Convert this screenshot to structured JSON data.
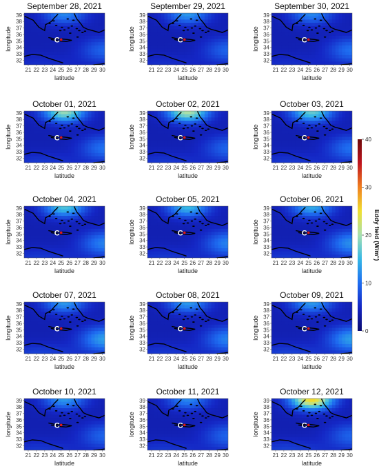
{
  "chart_data": {
    "type": "heatmap",
    "xlabel": "latitude",
    "ylabel": "longitude",
    "x_ticks": [
      21,
      22,
      23,
      24,
      25,
      26,
      27,
      28,
      29,
      30
    ],
    "y_ticks": [
      32,
      33,
      34,
      35,
      36,
      37,
      38,
      39
    ],
    "xlim": [
      20.5,
      30.3
    ],
    "ylim": [
      31.3,
      39.3
    ],
    "colorbar": {
      "label": "Eddy field (W/m",
      "label_sup": "2",
      "label_close": ")",
      "ticks": [
        0,
        10,
        20,
        30,
        40
      ],
      "range": [
        0,
        40
      ],
      "colors": [
        "#0b0b6e",
        "#1426c4",
        "#1e6cf0",
        "#35b8e6",
        "#a6e0b0",
        "#f0e030",
        "#f08020",
        "#c0141e",
        "#6e0a0a"
      ]
    },
    "center_marker": {
      "label": "C",
      "x": 25.0,
      "y": 35.2
    },
    "panels": [
      {
        "title": "September 28, 2021",
        "hot": 0.35,
        "east": 0.45,
        "south": 0.3
      },
      {
        "title": "September 29, 2021",
        "hot": 0.4,
        "east": 0.45,
        "south": 0.3
      },
      {
        "title": "September 30, 2021",
        "hot": 0.35,
        "east": 0.5,
        "south": 0.3
      },
      {
        "title": "October 01, 2021",
        "hot": 0.7,
        "east": 0.5,
        "south": 0.35
      },
      {
        "title": "October 02, 2021",
        "hot": 0.75,
        "east": 0.45,
        "south": 0.35
      },
      {
        "title": "October 03, 2021",
        "hot": 0.6,
        "east": 0.5,
        "south": 0.35
      },
      {
        "title": "October 04, 2021",
        "hot": 0.55,
        "east": 0.55,
        "south": 0.35
      },
      {
        "title": "October 05, 2021",
        "hot": 0.5,
        "east": 0.55,
        "south": 0.35
      },
      {
        "title": "October 06, 2021",
        "hot": 0.45,
        "east": 0.6,
        "south": 0.35
      },
      {
        "title": "October 07, 2021",
        "hot": 0.4,
        "east": 0.65,
        "south": 0.4
      },
      {
        "title": "October 08, 2021",
        "hot": 0.4,
        "east": 0.55,
        "south": 0.35
      },
      {
        "title": "October 09, 2021",
        "hot": 0.4,
        "east": 0.65,
        "south": 0.4
      },
      {
        "title": "October 10, 2021",
        "hot": 0.4,
        "east": 0.45,
        "south": 0.35
      },
      {
        "title": "October 11, 2021",
        "hot": 0.35,
        "east": 0.45,
        "south": 0.35
      },
      {
        "title": "October 12, 2021",
        "hot": 0.98,
        "east": 0.45,
        "south": 0.4
      }
    ]
  }
}
